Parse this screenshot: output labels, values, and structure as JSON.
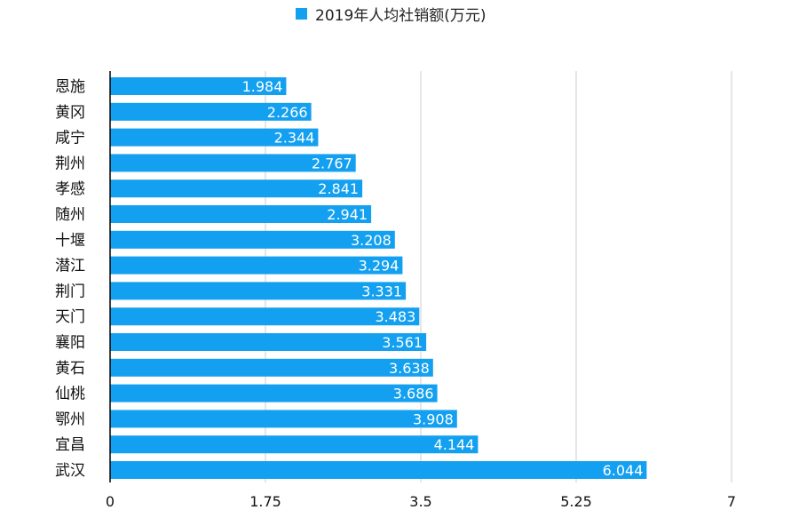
{
  "chart_data": {
    "type": "bar",
    "orientation": "horizontal",
    "categories": [
      "恩施",
      "黄冈",
      "咸宁",
      "荆州",
      "孝感",
      "随州",
      "十堰",
      "潜江",
      "荆门",
      "天门",
      "襄阳",
      "黄石",
      "仙桃",
      "鄂州",
      "宜昌",
      "武汉"
    ],
    "series": [
      {
        "name": "2019年人均社销额(万元)",
        "values": [
          1.984,
          2.266,
          2.344,
          2.767,
          2.841,
          2.941,
          3.208,
          3.294,
          3.331,
          3.483,
          3.561,
          3.638,
          3.686,
          3.908,
          4.144,
          6.044
        ],
        "value_labels": [
          "1.984",
          "2.266",
          "2.344",
          "2.767",
          "2.841",
          "2.941",
          "3.208",
          "3.294",
          "3.331",
          "3.483",
          "3.561",
          "3.638",
          "3.686",
          "3.908",
          "4.144",
          "6.044"
        ]
      }
    ],
    "xlim": [
      0,
      7
    ],
    "xticks": [
      0,
      1.75,
      3.5,
      5.25,
      7
    ],
    "xtick_labels": [
      "0",
      "1.75",
      "3.5",
      "5.25",
      "7"
    ],
    "grid": "vertical",
    "legend": "top-center",
    "title": "",
    "xlabel": "",
    "ylabel": ""
  },
  "colors": {
    "bar": "#14a0f0",
    "grid": "#cccccc",
    "axis": "#000000"
  }
}
